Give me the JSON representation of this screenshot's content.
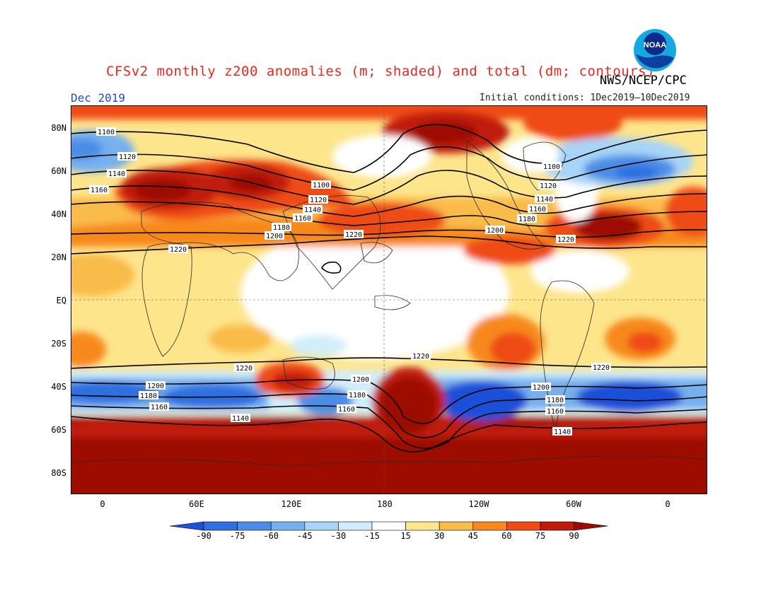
{
  "header": {
    "title": "CFSv2 monthly z200 anomalies (m; shaded) and total (dm; contours)",
    "credit": "NWS/NCEP/CPC",
    "period": "Dec 2019",
    "initial_conditions": "Initial conditions: 1Dec2019–10Dec2019",
    "logo_text": "NOAA"
  },
  "axes": {
    "lat_labels": [
      "80N",
      "60N",
      "40N",
      "20N",
      "EQ",
      "20S",
      "40S",
      "60S",
      "80S"
    ],
    "lon_labels": [
      "0",
      "60E",
      "120E",
      "180",
      "120W",
      "60W",
      "0"
    ]
  },
  "colorbar": {
    "labels": [
      "-90",
      "-75",
      "-60",
      "-45",
      "-30",
      "-15",
      "15",
      "30",
      "45",
      "60",
      "75",
      "90"
    ],
    "colors": [
      "#1e4fd8",
      "#2f6fe0",
      "#4b8de6",
      "#76b0ee",
      "#a8d4f6",
      "#d2eefb",
      "#ffffff",
      "#fde58c",
      "#f9bb4a",
      "#f7891f",
      "#ef4b14",
      "#c01a0d",
      "#9c0a00"
    ]
  },
  "contours": {
    "units": "dm",
    "labels": [
      "1100",
      "1120",
      "1140",
      "1160",
      "1180",
      "1200",
      "1220"
    ]
  },
  "colors": {
    "title": "#e8281e",
    "period": "#1f4fd1",
    "ocean_dark_red": "#9c0a00"
  }
}
